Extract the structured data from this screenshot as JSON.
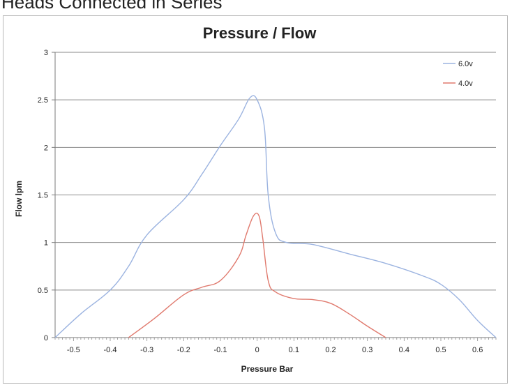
{
  "page": {
    "heading": "Heads Connected in Series"
  },
  "chart_data": {
    "type": "line",
    "title": "Pressure / Flow",
    "xlabel": "Pressure Bar",
    "ylabel": "Flow lpm",
    "xlim": [
      -0.55,
      0.65
    ],
    "ylim": [
      0,
      3
    ],
    "x_ticks": [
      "-0.5",
      "-0.4",
      "-0.3",
      "-0.2",
      "-0.1",
      "0",
      "0.1",
      "0.2",
      "0.3",
      "0.4",
      "0.5",
      "0.6"
    ],
    "y_ticks": [
      "0",
      "0.5",
      "1",
      "1.5",
      "2",
      "2.5",
      "3"
    ],
    "grid": "horizontal",
    "legend_position": "top-right",
    "series": [
      {
        "name": "6.0v",
        "color": "#9bb3e0",
        "points": [
          [
            -0.55,
            0
          ],
          [
            -0.48,
            0.25
          ],
          [
            -0.4,
            0.5
          ],
          [
            -0.35,
            0.75
          ],
          [
            -0.3,
            1.08
          ],
          [
            -0.2,
            1.45
          ],
          [
            -0.15,
            1.72
          ],
          [
            -0.1,
            2.02
          ],
          [
            -0.05,
            2.3
          ],
          [
            -0.02,
            2.52
          ],
          [
            0.0,
            2.5
          ],
          [
            0.02,
            2.2
          ],
          [
            0.03,
            1.5
          ],
          [
            0.05,
            1.1
          ],
          [
            0.08,
            1.0
          ],
          [
            0.15,
            0.98
          ],
          [
            0.25,
            0.88
          ],
          [
            0.35,
            0.78
          ],
          [
            0.45,
            0.65
          ],
          [
            0.5,
            0.56
          ],
          [
            0.55,
            0.4
          ],
          [
            0.6,
            0.18
          ],
          [
            0.65,
            0
          ]
        ]
      },
      {
        "name": "4.0v",
        "color": "#e07a6e",
        "points": [
          [
            -0.35,
            0
          ],
          [
            -0.28,
            0.2
          ],
          [
            -0.2,
            0.45
          ],
          [
            -0.15,
            0.53
          ],
          [
            -0.1,
            0.6
          ],
          [
            -0.05,
            0.85
          ],
          [
            -0.03,
            1.08
          ],
          [
            -0.01,
            1.28
          ],
          [
            0.005,
            1.28
          ],
          [
            0.015,
            1.05
          ],
          [
            0.03,
            0.6
          ],
          [
            0.05,
            0.48
          ],
          [
            0.1,
            0.41
          ],
          [
            0.15,
            0.4
          ],
          [
            0.2,
            0.36
          ],
          [
            0.25,
            0.25
          ],
          [
            0.3,
            0.12
          ],
          [
            0.35,
            0
          ]
        ]
      }
    ]
  }
}
